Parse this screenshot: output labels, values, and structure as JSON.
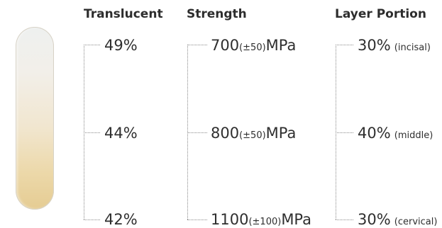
{
  "headers": {
    "translucent": "Translucent",
    "strength": "Strength",
    "layer_portion": "Layer Portion"
  },
  "translucent": [
    "49%",
    "44%",
    "42%"
  ],
  "strength": [
    {
      "value": "700",
      "tolerance": "(±50)",
      "unit": "MPa"
    },
    {
      "value": "800",
      "tolerance": "(±50)",
      "unit": "MPa"
    },
    {
      "value": "1100",
      "tolerance": "(±100)",
      "unit": "MPa"
    }
  ],
  "layer_portion": [
    {
      "value": "30%",
      "note": "(incisal)"
    },
    {
      "value": "40%",
      "note": "(middle)"
    },
    {
      "value": "30%",
      "note": "(cervical)"
    }
  ],
  "colors": {
    "bar_top": "#eef0ef",
    "bar_bottom": "#e5cc93",
    "dotted_line": "#8a8a8a",
    "text": "#2f2f2f"
  }
}
